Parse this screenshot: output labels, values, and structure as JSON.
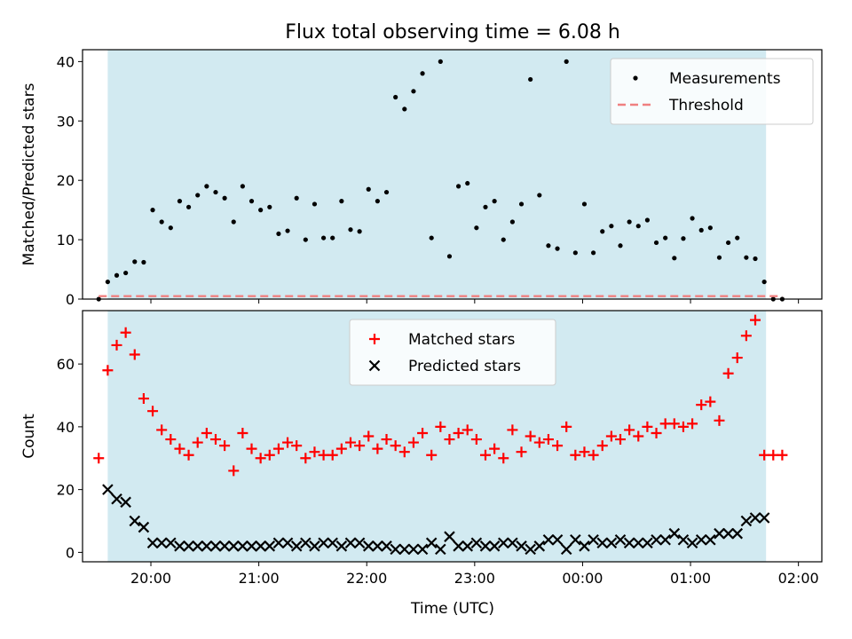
{
  "chart_data": {
    "title": "Flux total observing time = 6.08 h",
    "xlabel": "Time (UTC)",
    "x_ticks": [
      "20:00",
      "21:00",
      "22:00",
      "23:00",
      "00:00",
      "01:00",
      "02:00"
    ],
    "x_range": [
      "19:22",
      "02:13"
    ],
    "observing_window": [
      "19:36",
      "01:42"
    ],
    "colors": {
      "window": "#add8e6",
      "matched": "#ff0000",
      "predicted": "#000000",
      "threshold": "#f08080",
      "measurements": "#000000"
    },
    "panels": [
      {
        "type": "scatter",
        "ylabel": "Matched/Predicted stars",
        "ylim": [
          0,
          42
        ],
        "y_ticks": [
          0,
          10,
          20,
          30,
          40
        ],
        "legend_position": "top-right",
        "series": [
          {
            "name": "Measurements",
            "marker": "dot",
            "points": [
              [
                "19:31",
                0.0
              ],
              [
                "19:36",
                2.9
              ],
              [
                "19:41",
                4.0
              ],
              [
                "19:46",
                4.4
              ],
              [
                "19:51",
                6.3
              ],
              [
                "19:56",
                6.2
              ],
              [
                "20:01",
                15.0
              ],
              [
                "20:06",
                13.0
              ],
              [
                "20:11",
                12.0
              ],
              [
                "20:16",
                16.5
              ],
              [
                "20:21",
                15.5
              ],
              [
                "20:26",
                17.5
              ],
              [
                "20:31",
                19.0
              ],
              [
                "20:36",
                18.0
              ],
              [
                "20:41",
                17.0
              ],
              [
                "20:46",
                13.0
              ],
              [
                "20:51",
                19.0
              ],
              [
                "20:56",
                16.5
              ],
              [
                "21:01",
                15.0
              ],
              [
                "21:06",
                15.5
              ],
              [
                "21:11",
                11.0
              ],
              [
                "21:16",
                11.5
              ],
              [
                "21:21",
                17.0
              ],
              [
                "21:26",
                10.0
              ],
              [
                "21:31",
                16.0
              ],
              [
                "21:36",
                10.3
              ],
              [
                "21:41",
                10.3
              ],
              [
                "21:46",
                16.5
              ],
              [
                "21:51",
                11.7
              ],
              [
                "21:56",
                11.4
              ],
              [
                "22:01",
                18.5
              ],
              [
                "22:06",
                16.5
              ],
              [
                "22:11",
                18.0
              ],
              [
                "22:16",
                34.0
              ],
              [
                "22:21",
                32.0
              ],
              [
                "22:26",
                35.0
              ],
              [
                "22:31",
                38.0
              ],
              [
                "22:36",
                10.3
              ],
              [
                "22:41",
                40.0
              ],
              [
                "22:46",
                7.2
              ],
              [
                "22:51",
                19.0
              ],
              [
                "22:56",
                19.5
              ],
              [
                "23:01",
                12.0
              ],
              [
                "23:06",
                15.5
              ],
              [
                "23:11",
                16.5
              ],
              [
                "23:16",
                10.0
              ],
              [
                "23:21",
                13.0
              ],
              [
                "23:26",
                16.0
              ],
              [
                "23:31",
                37.0
              ],
              [
                "23:36",
                17.5
              ],
              [
                "23:41",
                9.0
              ],
              [
                "23:46",
                8.5
              ],
              [
                "23:51",
                40.0
              ],
              [
                "23:56",
                7.8
              ],
              [
                "00:01",
                16.0
              ],
              [
                "00:06",
                7.8
              ],
              [
                "00:11",
                11.4
              ],
              [
                "00:16",
                12.3
              ],
              [
                "00:21",
                9.0
              ],
              [
                "00:26",
                13.0
              ],
              [
                "00:31",
                12.3
              ],
              [
                "00:36",
                13.3
              ],
              [
                "00:41",
                9.5
              ],
              [
                "00:46",
                10.3
              ],
              [
                "00:51",
                6.9
              ],
              [
                "00:56",
                10.2
              ],
              [
                "01:01",
                13.6
              ],
              [
                "01:06",
                11.6
              ],
              [
                "01:11",
                12.0
              ],
              [
                "01:16",
                7.0
              ],
              [
                "01:21",
                9.5
              ],
              [
                "01:26",
                10.3
              ],
              [
                "01:31",
                7.0
              ],
              [
                "01:36",
                6.8
              ],
              [
                "01:41",
                2.9
              ],
              [
                "01:46",
                0.0
              ],
              [
                "01:51",
                0.0
              ]
            ]
          },
          {
            "name": "Threshold",
            "style": "dashed",
            "points": [
              [
                "19:31",
                0.5
              ],
              [
                "01:51",
                0.5
              ]
            ]
          }
        ]
      },
      {
        "type": "scatter",
        "ylabel": "Count",
        "ylim": [
          -3,
          77
        ],
        "y_ticks": [
          0,
          20,
          40,
          60
        ],
        "legend_position": "top-center",
        "series": [
          {
            "name": "Matched stars",
            "marker": "plus",
            "points": [
              [
                "19:31",
                30
              ],
              [
                "19:36",
                58
              ],
              [
                "19:41",
                66
              ],
              [
                "19:46",
                70
              ],
              [
                "19:51",
                63
              ],
              [
                "19:56",
                49
              ],
              [
                "20:01",
                45
              ],
              [
                "20:06",
                39
              ],
              [
                "20:11",
                36
              ],
              [
                "20:16",
                33
              ],
              [
                "20:21",
                31
              ],
              [
                "20:26",
                35
              ],
              [
                "20:31",
                38
              ],
              [
                "20:36",
                36
              ],
              [
                "20:41",
                34
              ],
              [
                "20:46",
                26
              ],
              [
                "20:51",
                38
              ],
              [
                "20:56",
                33
              ],
              [
                "21:01",
                30
              ],
              [
                "21:06",
                31
              ],
              [
                "21:11",
                33
              ],
              [
                "21:16",
                35
              ],
              [
                "21:21",
                34
              ],
              [
                "21:26",
                30
              ],
              [
                "21:31",
                32
              ],
              [
                "21:36",
                31
              ],
              [
                "21:41",
                31
              ],
              [
                "21:46",
                33
              ],
              [
                "21:51",
                35
              ],
              [
                "21:56",
                34
              ],
              [
                "22:01",
                37
              ],
              [
                "22:06",
                33
              ],
              [
                "22:11",
                36
              ],
              [
                "22:16",
                34
              ],
              [
                "22:21",
                32
              ],
              [
                "22:26",
                35
              ],
              [
                "22:31",
                38
              ],
              [
                "22:36",
                31
              ],
              [
                "22:41",
                40
              ],
              [
                "22:46",
                36
              ],
              [
                "22:51",
                38
              ],
              [
                "22:56",
                39
              ],
              [
                "23:01",
                36
              ],
              [
                "23:06",
                31
              ],
              [
                "23:11",
                33
              ],
              [
                "23:16",
                30
              ],
              [
                "23:21",
                39
              ],
              [
                "23:26",
                32
              ],
              [
                "23:31",
                37
              ],
              [
                "23:36",
                35
              ],
              [
                "23:41",
                36
              ],
              [
                "23:46",
                34
              ],
              [
                "23:51",
                40
              ],
              [
                "23:56",
                31
              ],
              [
                "00:01",
                32
              ],
              [
                "00:06",
                31
              ],
              [
                "00:11",
                34
              ],
              [
                "00:16",
                37
              ],
              [
                "00:21",
                36
              ],
              [
                "00:26",
                39
              ],
              [
                "00:31",
                37
              ],
              [
                "00:36",
                40
              ],
              [
                "00:41",
                38
              ],
              [
                "00:46",
                41
              ],
              [
                "00:51",
                41
              ],
              [
                "00:56",
                40
              ],
              [
                "01:01",
                41
              ],
              [
                "01:06",
                47
              ],
              [
                "01:11",
                48
              ],
              [
                "01:16",
                42
              ],
              [
                "01:21",
                57
              ],
              [
                "01:26",
                62
              ],
              [
                "01:31",
                69
              ],
              [
                "01:36",
                74
              ],
              [
                "01:41",
                31
              ],
              [
                "01:46",
                31
              ],
              [
                "01:51",
                31
              ]
            ]
          },
          {
            "name": "Predicted stars",
            "marker": "x",
            "points": [
              [
                "19:36",
                20
              ],
              [
                "19:41",
                17
              ],
              [
                "19:46",
                16
              ],
              [
                "19:51",
                10
              ],
              [
                "19:56",
                8
              ],
              [
                "20:01",
                3
              ],
              [
                "20:06",
                3
              ],
              [
                "20:11",
                3
              ],
              [
                "20:16",
                2
              ],
              [
                "20:21",
                2
              ],
              [
                "20:26",
                2
              ],
              [
                "20:31",
                2
              ],
              [
                "20:36",
                2
              ],
              [
                "20:41",
                2
              ],
              [
                "20:46",
                2
              ],
              [
                "20:51",
                2
              ],
              [
                "20:56",
                2
              ],
              [
                "21:01",
                2
              ],
              [
                "21:06",
                2
              ],
              [
                "21:11",
                3
              ],
              [
                "21:16",
                3
              ],
              [
                "21:21",
                2
              ],
              [
                "21:26",
                3
              ],
              [
                "21:31",
                2
              ],
              [
                "21:36",
                3
              ],
              [
                "21:41",
                3
              ],
              [
                "21:46",
                2
              ],
              [
                "21:51",
                3
              ],
              [
                "21:56",
                3
              ],
              [
                "22:01",
                2
              ],
              [
                "22:06",
                2
              ],
              [
                "22:11",
                2
              ],
              [
                "22:16",
                1
              ],
              [
                "22:21",
                1
              ],
              [
                "22:26",
                1
              ],
              [
                "22:31",
                1
              ],
              [
                "22:36",
                3
              ],
              [
                "22:41",
                1
              ],
              [
                "22:46",
                5
              ],
              [
                "22:51",
                2
              ],
              [
                "22:56",
                2
              ],
              [
                "23:01",
                3
              ],
              [
                "23:06",
                2
              ],
              [
                "23:11",
                2
              ],
              [
                "23:16",
                3
              ],
              [
                "23:21",
                3
              ],
              [
                "23:26",
                2
              ],
              [
                "23:31",
                1
              ],
              [
                "23:36",
                2
              ],
              [
                "23:41",
                4
              ],
              [
                "23:46",
                4
              ],
              [
                "23:51",
                1
              ],
              [
                "23:56",
                4
              ],
              [
                "00:01",
                2
              ],
              [
                "00:06",
                4
              ],
              [
                "00:11",
                3
              ],
              [
                "00:16",
                3
              ],
              [
                "00:21",
                4
              ],
              [
                "00:26",
                3
              ],
              [
                "00:31",
                3
              ],
              [
                "00:36",
                3
              ],
              [
                "00:41",
                4
              ],
              [
                "00:46",
                4
              ],
              [
                "00:51",
                6
              ],
              [
                "00:56",
                4
              ],
              [
                "01:01",
                3
              ],
              [
                "01:06",
                4
              ],
              [
                "01:11",
                4
              ],
              [
                "01:16",
                6
              ],
              [
                "01:21",
                6
              ],
              [
                "01:26",
                6
              ],
              [
                "01:31",
                10
              ],
              [
                "01:36",
                11
              ],
              [
                "01:41",
                11
              ]
            ]
          }
        ]
      }
    ]
  }
}
